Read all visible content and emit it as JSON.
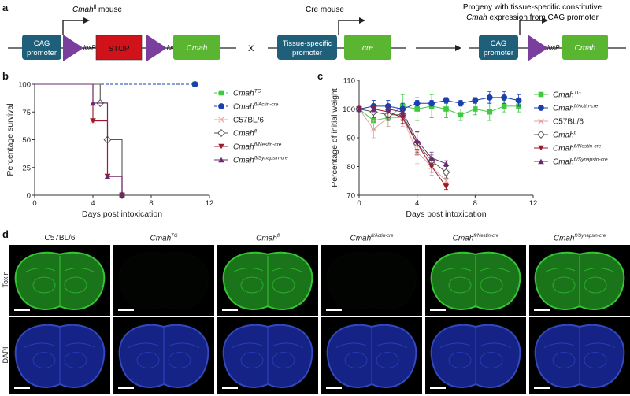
{
  "panel_a": {
    "letter": "a",
    "left_title_italic": "Cmah",
    "left_title_sup": "fl",
    "left_title_rest": " mouse",
    "middle_title": "Cre mouse",
    "right_title_line1": "Progeny with tissue-specific constitutive",
    "right_title_line2_italic": "Cmah",
    "right_title_line2_rest": " expression from CAG promoter",
    "cag_promoter_line1": "CAG",
    "cag_promoter_line2": "promoter",
    "loxp": "loxP",
    "stop": "STOP",
    "cmah": "Cmah",
    "cross": "X",
    "tissue_line1": "Tissue-specific",
    "tissue_line2": "promoter",
    "cre": "cre",
    "colors": {
      "promoter": "#1f5f7a",
      "stop": "#d0121b",
      "loxp": "#7a3f9d",
      "gene": "#5ab531"
    }
  },
  "panel_b": {
    "letter": "b"
  },
  "panel_c": {
    "letter": "c"
  },
  "panel_d": {
    "letter": "d",
    "columns": [
      {
        "main": "C57BL/6",
        "sup": ""
      },
      {
        "main": "Cmah",
        "sup": "TG"
      },
      {
        "main": "Cmah",
        "sup": "fl"
      },
      {
        "main": "Cmah",
        "sup": "fl/Actin-cre"
      },
      {
        "main": "Cmah",
        "sup": "fl/Nestin-cre"
      },
      {
        "main": "Cmah",
        "sup": "fl/Synapsin-cre"
      }
    ],
    "rows": [
      "Toxin",
      "DAPI"
    ],
    "toxin_signal": [
      1,
      0,
      1,
      0,
      1,
      1
    ]
  },
  "chart_data": [
    {
      "type": "line",
      "panel": "b",
      "xlabel": "Days post intoxication",
      "ylabel": "Percentage survival",
      "xlim": [
        0,
        12
      ],
      "ylim": [
        0,
        100
      ],
      "xticks": [
        0,
        4,
        8,
        12
      ],
      "yticks": [
        0,
        25,
        50,
        75,
        100
      ],
      "series": [
        {
          "name": "Cmah TG",
          "label": "Cmah",
          "sup": "TG",
          "color": "#3ec93e",
          "marker": "square",
          "dashed": true,
          "x": [
            0,
            11
          ],
          "y": [
            100,
            100
          ]
        },
        {
          "name": "Cmah fl/Actin-cre",
          "label": "Cmah",
          "sup": "fl/Actin-cre",
          "color": "#1a3fb0",
          "marker": "circle",
          "dashed": true,
          "x": [
            0,
            11
          ],
          "y": [
            100,
            100
          ]
        },
        {
          "name": "C57BL/6",
          "label": "C57BL/6",
          "sup": "",
          "color": "#e6a3a3",
          "marker": "x",
          "dashed": false,
          "x": [
            0,
            4,
            4,
            5,
            5,
            6,
            6
          ],
          "y": [
            100,
            100,
            67,
            67,
            17,
            17,
            0
          ]
        },
        {
          "name": "Cmah fl",
          "label": "Cmah",
          "sup": "fl",
          "color": "#555555",
          "marker": "diamond",
          "dashed": false,
          "x": [
            0,
            4.5,
            4.5,
            5,
            5,
            6,
            6
          ],
          "y": [
            100,
            100,
            83,
            83,
            50,
            50,
            0
          ]
        },
        {
          "name": "Cmah fl/Nestin-cre",
          "label": "Cmah",
          "sup": "fl/Nestin-cre",
          "color": "#9b1b2a",
          "marker": "tri-down",
          "dashed": false,
          "x": [
            0,
            4,
            4,
            5,
            5,
            6,
            6
          ],
          "y": [
            100,
            100,
            67,
            67,
            17,
            17,
            0
          ]
        },
        {
          "name": "Cmah fl/Synapsin-cre",
          "label": "Cmah",
          "sup": "fl/Synapsin-cre",
          "color": "#6b2a6b",
          "marker": "tri-up",
          "dashed": false,
          "x": [
            0,
            4,
            4,
            5,
            5,
            6,
            6
          ],
          "y": [
            100,
            100,
            83,
            83,
            17,
            17,
            0
          ]
        }
      ]
    },
    {
      "type": "line",
      "panel": "c",
      "xlabel": "Days post intoxication",
      "ylabel": "Percentage of initial weight",
      "xlim": [
        0,
        12
      ],
      "ylim": [
        70,
        110
      ],
      "xticks": [
        0,
        4,
        8,
        12
      ],
      "yticks": [
        70,
        80,
        90,
        100,
        110
      ],
      "series": [
        {
          "name": "Cmah TG",
          "label": "Cmah",
          "sup": "TG",
          "color": "#3ec93e",
          "marker": "square",
          "x": [
            0,
            1,
            2,
            3,
            4,
            5,
            6,
            7,
            8,
            9,
            10,
            11
          ],
          "y": [
            100,
            96,
            97,
            101,
            100,
            101,
            100,
            98,
            100,
            99,
            101,
            101
          ],
          "err": [
            1,
            3,
            3,
            4,
            4,
            4,
            3,
            2,
            2,
            3,
            2,
            2
          ]
        },
        {
          "name": "Cmah fl/Actin-cre",
          "label": "Cmah",
          "sup": "fl/Actin-cre",
          "color": "#1a3fb0",
          "marker": "circle",
          "x": [
            0,
            1,
            2,
            3,
            4,
            5,
            6,
            7,
            8,
            9,
            10,
            11
          ],
          "y": [
            100,
            101,
            101,
            100,
            102,
            102,
            103,
            102,
            103,
            104,
            104,
            103
          ],
          "err": [
            1,
            2,
            2,
            2,
            1,
            1,
            1,
            1,
            1,
            2,
            2,
            2
          ]
        },
        {
          "name": "C57BL/6",
          "label": "C57BL/6",
          "sup": "",
          "color": "#e6a3a3",
          "marker": "x",
          "x": [
            0,
            1,
            2,
            3,
            4,
            5,
            6
          ],
          "y": [
            100,
            93,
            97,
            97,
            85,
            80,
            75
          ],
          "err": [
            1,
            3,
            3,
            3,
            4,
            3,
            2
          ]
        },
        {
          "name": "Cmah fl",
          "label": "Cmah",
          "sup": "fl",
          "color": "#555555",
          "marker": "diamond",
          "x": [
            0,
            1,
            2,
            3,
            4,
            5,
            6
          ],
          "y": [
            100,
            99,
            98,
            98,
            88,
            82,
            78
          ],
          "err": [
            1,
            2,
            2,
            2,
            3,
            2,
            2
          ]
        },
        {
          "name": "Cmah fl/Nestin-cre",
          "label": "Cmah",
          "sup": "fl/Nestin-cre",
          "color": "#9b1b2a",
          "marker": "tri-down",
          "x": [
            0,
            1,
            2,
            3,
            4,
            5,
            6
          ],
          "y": [
            100,
            100,
            99,
            97,
            88,
            80,
            73
          ],
          "err": [
            1,
            1,
            2,
            2,
            4,
            2,
            1
          ]
        },
        {
          "name": "Cmah fl/Synapsin-cre",
          "label": "Cmah",
          "sup": "fl/Synapsin-cre",
          "color": "#6b2a6b",
          "marker": "tri-up",
          "x": [
            0,
            1,
            2,
            3,
            4,
            5,
            6
          ],
          "y": [
            100,
            100,
            100,
            99,
            89,
            83,
            81
          ],
          "err": [
            1,
            1,
            1,
            1,
            3,
            2,
            1
          ]
        }
      ]
    }
  ]
}
